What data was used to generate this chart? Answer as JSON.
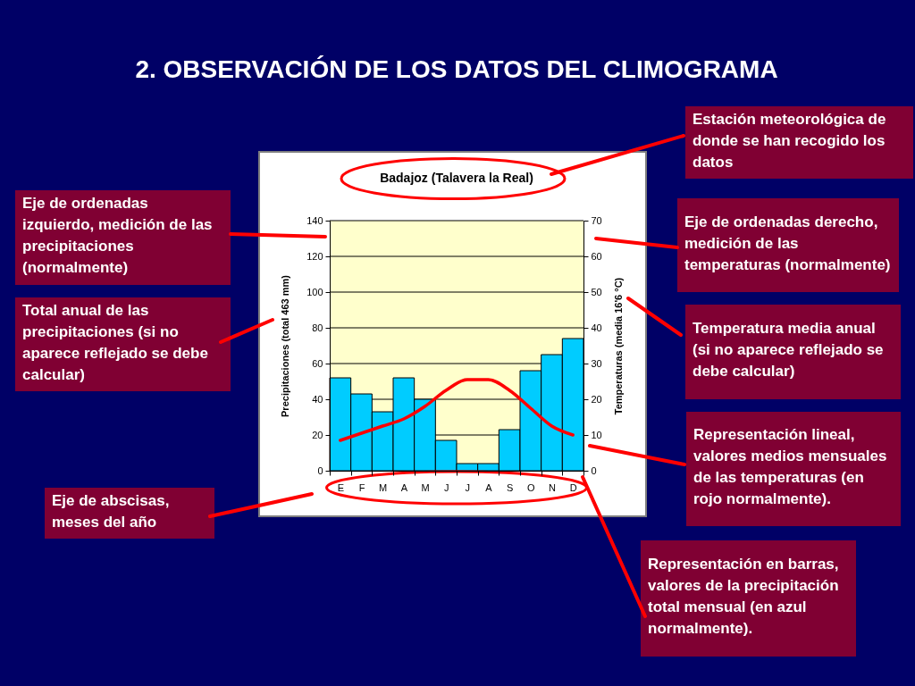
{
  "chart_data": {
    "type": "bar",
    "title": "2. OBSERVACIÓN DE LOS DATOS DEL CLIMOGRAMA",
    "subtitle": "Badajoz (Talavera la Real)",
    "ylabel": "Precipitaciones (total 463 mm)",
    "y2label": "Temperaturas (media 16'6 °C)",
    "categories": [
      "E",
      "F",
      "M",
      "A",
      "M",
      "J",
      "J",
      "A",
      "S",
      "O",
      "N",
      "D"
    ],
    "series": [
      {
        "color": "#00ccff",
        "values": [
          52,
          43,
          33,
          52,
          40,
          17,
          4,
          4,
          23,
          56,
          65,
          74
        ]
      },
      {
        "type": "line",
        "axis": "y2",
        "color": "#ff0000",
        "values": [
          8.5,
          10.5,
          12.5,
          14.5,
          18,
          22.5,
          25.5,
          25.5,
          22.5,
          17.5,
          12.5,
          10
        ]
      }
    ],
    "ylim": [
      0,
      140
    ],
    "yticks": [
      0,
      20,
      40,
      60,
      80,
      100,
      120,
      140
    ],
    "y2lim": [
      0,
      70
    ],
    "y2ticks": [
      0,
      10,
      20,
      30,
      40,
      50,
      60,
      70
    ],
    "grid": "y",
    "annotations": [
      "Estación meteorológica de donde se han recogido los datos",
      "Eje de ordenadas izquierdo, medición de las precipitaciones (normalmente)",
      "Eje de ordenadas derecho, medición de las temperaturas (normalmente)",
      "Total anual de las precipitaciones (si no aparece reflejado se debe calcular)",
      "Temperatura media anual (si no aparece reflejado se debe calcular)",
      "Representación lineal, valores medios mensuales de las temperaturas (en rojo normalmente).",
      "Eje de abscisas, meses del año",
      "Representación en barras, valores de la precipitación total mensual (en azul normalmente)."
    ]
  }
}
